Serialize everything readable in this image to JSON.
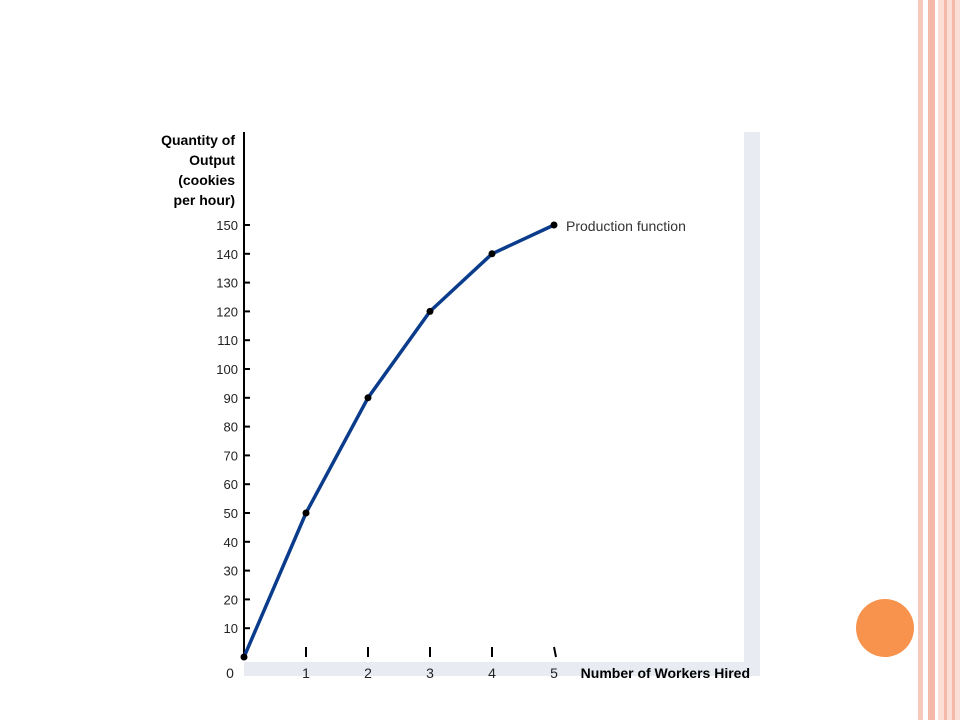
{
  "colors": {
    "line": "#0b3c8c",
    "point": "#000000",
    "axis": "#000000",
    "panel": "#e8ebf2",
    "accent_circle": "#f8934e",
    "edge_stripes": [
      "#f7c9bd",
      "#f4b9a8",
      "#fbded6"
    ]
  },
  "chart_data": {
    "type": "line",
    "title": "",
    "xlabel": "Number of Workers Hired",
    "ylabel": "Quantity of\nOutput\n(cookies\nper hour)",
    "x": [
      0,
      1,
      2,
      3,
      4,
      5
    ],
    "series": [
      {
        "name": "Production function",
        "values": [
          0,
          50,
          90,
          120,
          140,
          150
        ]
      }
    ],
    "xlim": [
      0,
      5
    ],
    "ylim": [
      0,
      150
    ],
    "x_ticks": [
      "0",
      "1",
      "2",
      "3",
      "4",
      "5"
    ],
    "y_ticks": [
      "10",
      "20",
      "30",
      "40",
      "50",
      "60",
      "70",
      "80",
      "90",
      "100",
      "110",
      "120",
      "130",
      "140",
      "150"
    ],
    "grid": false,
    "legend": "end-of-line label"
  }
}
